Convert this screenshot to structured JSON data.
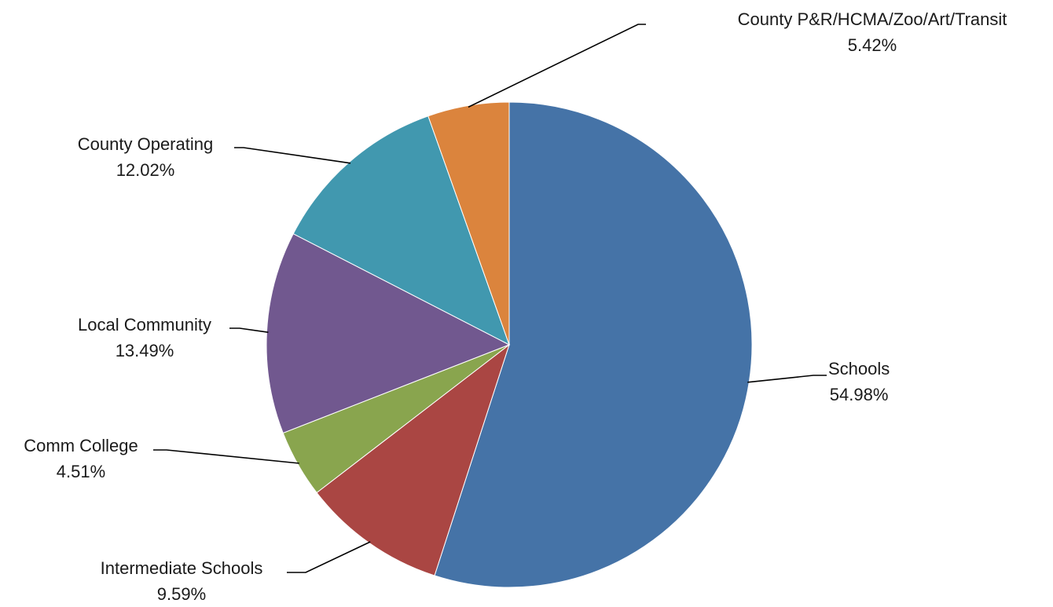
{
  "chart_data": {
    "type": "pie",
    "categories": [
      "Schools",
      "Intermediate Schools",
      "Comm College",
      "Local Community",
      "County Operating",
      "County P&R/HCMA/Zoo/Art/Transit"
    ],
    "values": [
      54.98,
      9.59,
      4.51,
      13.49,
      12.02,
      5.42
    ],
    "value_labels": [
      "54.98%",
      "9.59%",
      "4.51%",
      "13.49%",
      "12.02%",
      "5.42%"
    ],
    "colors": [
      "#4573A7",
      "#AA4643",
      "#89A54E",
      "#71588F",
      "#4198AF",
      "#DB843D"
    ],
    "start_angle": "12 o'clock",
    "direction": "clockwise",
    "legend": "none",
    "data_labels": "outside with leader lines"
  }
}
